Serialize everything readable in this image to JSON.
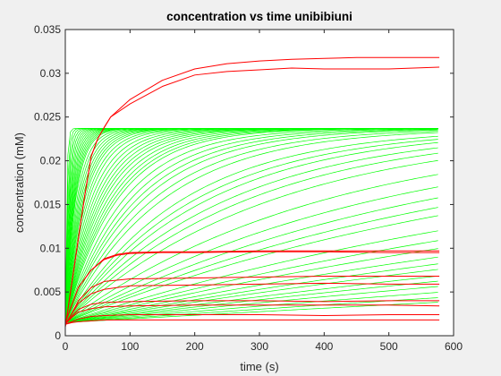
{
  "chart_data": {
    "type": "line",
    "title": "concentration vs time unibibiuni",
    "xlabel": "time (s)",
    "ylabel": "concentration (mM)",
    "xlim": [
      0,
      600
    ],
    "ylim": [
      0,
      0.035
    ],
    "xticks": [
      0,
      100,
      200,
      300,
      400,
      500,
      600
    ],
    "yticks": [
      0,
      0.005,
      0.01,
      0.015,
      0.02,
      0.025,
      0.03,
      0.035
    ],
    "ytick_labels": [
      "0",
      "0.005",
      "0.01",
      "0.015",
      "0.02",
      "0.025",
      "0.03",
      "0.035"
    ],
    "grid": false,
    "legend": "none",
    "colors": {
      "green": "#00ff00",
      "red": "#ff0000",
      "axes_bg": "#ffffff",
      "figure_bg": "#f0f0f0"
    },
    "x_end": 578,
    "green_series": {
      "description_note_none": "",
      "y0": 0.0015,
      "plateau": 0.0237,
      "time_constants": [
        2,
        3,
        4,
        5,
        6,
        7,
        8,
        9,
        10,
        11,
        12,
        13,
        14,
        15,
        16,
        18,
        20,
        22,
        24,
        26,
        28,
        30,
        33,
        36,
        40,
        44,
        48,
        52,
        56,
        60,
        65,
        70,
        75,
        80,
        90,
        100,
        110,
        120,
        135,
        150,
        180,
        200,
        220,
        250,
        280,
        320,
        400,
        480,
        560,
        640,
        720,
        900,
        1050,
        1200,
        1400,
        1600,
        1800,
        2100,
        2400,
        2800,
        3400,
        4200,
        5200
      ]
    },
    "red_series": [
      {
        "x": [
          0,
          10,
          20,
          30,
          40,
          50,
          60,
          70,
          100,
          150,
          200,
          250,
          300,
          350,
          400,
          450,
          500,
          578
        ],
        "y": [
          0.001,
          0.006,
          0.011,
          0.016,
          0.0205,
          0.0225,
          0.0238,
          0.025,
          0.027,
          0.0292,
          0.0305,
          0.0311,
          0.0314,
          0.0316,
          0.0317,
          0.0318,
          0.0318,
          0.0318
        ]
      },
      {
        "x": [
          0,
          10,
          20,
          30,
          40,
          50,
          60,
          70,
          100,
          150,
          200,
          250,
          300,
          350,
          400,
          450,
          500,
          578
        ],
        "y": [
          0.001,
          0.006,
          0.011,
          0.016,
          0.0205,
          0.0225,
          0.0238,
          0.025,
          0.0265,
          0.0285,
          0.0298,
          0.0302,
          0.0304,
          0.0306,
          0.0305,
          0.0305,
          0.0305,
          0.0307
        ]
      },
      {
        "x": [
          0,
          10,
          20,
          40,
          60,
          80,
          100,
          150,
          200,
          300,
          400,
          500,
          578
        ],
        "y": [
          0.0015,
          0.0035,
          0.0055,
          0.0075,
          0.0088,
          0.0093,
          0.0095,
          0.0096,
          0.0096,
          0.0097,
          0.0097,
          0.0097,
          0.0097
        ]
      },
      {
        "x": [
          0,
          10,
          20,
          40,
          60,
          80,
          100,
          150,
          200,
          300,
          400,
          500,
          578
        ],
        "y": [
          0.0015,
          0.0035,
          0.0055,
          0.0075,
          0.0087,
          0.0092,
          0.0094,
          0.0095,
          0.0095,
          0.0096,
          0.0096,
          0.0095,
          0.0095
        ]
      },
      {
        "x": [
          0,
          10,
          20,
          40,
          60,
          100,
          200,
          300,
          400,
          500,
          578
        ],
        "y": [
          0.0013,
          0.0025,
          0.004,
          0.0055,
          0.0062,
          0.0065,
          0.0066,
          0.0067,
          0.0068,
          0.0068,
          0.0068
        ]
      },
      {
        "x": [
          0,
          10,
          20,
          40,
          60,
          100,
          200,
          300,
          400,
          500,
          578
        ],
        "y": [
          0.0013,
          0.0025,
          0.0037,
          0.0048,
          0.0053,
          0.0057,
          0.0058,
          0.0059,
          0.006,
          0.0059,
          0.0059
        ]
      },
      {
        "x": [
          0,
          10,
          20,
          40,
          60,
          100,
          200,
          300,
          400,
          500,
          578
        ],
        "y": [
          0.0013,
          0.0022,
          0.003,
          0.0036,
          0.0038,
          0.0039,
          0.004,
          0.004,
          0.0039,
          0.004,
          0.004
        ]
      },
      {
        "x": [
          0,
          10,
          20,
          40,
          60,
          100,
          200,
          300,
          400,
          500,
          578
        ],
        "y": [
          0.0013,
          0.0021,
          0.0027,
          0.0031,
          0.0033,
          0.0034,
          0.0035,
          0.0035,
          0.0035,
          0.0035,
          0.0034
        ]
      },
      {
        "x": [
          0,
          10,
          20,
          40,
          60,
          100,
          200,
          300,
          400,
          500,
          578
        ],
        "y": [
          0.0013,
          0.0016,
          0.0019,
          0.0022,
          0.0023,
          0.0024,
          0.0024,
          0.0024,
          0.0023,
          0.0024,
          0.0024
        ]
      },
      {
        "x": [
          0,
          10,
          20,
          40,
          60,
          100,
          200,
          300,
          400,
          500,
          578
        ],
        "y": [
          0.0013,
          0.0015,
          0.0016,
          0.0017,
          0.0018,
          0.0018,
          0.0018,
          0.0018,
          0.0018,
          0.0018,
          0.0018
        ]
      }
    ]
  }
}
